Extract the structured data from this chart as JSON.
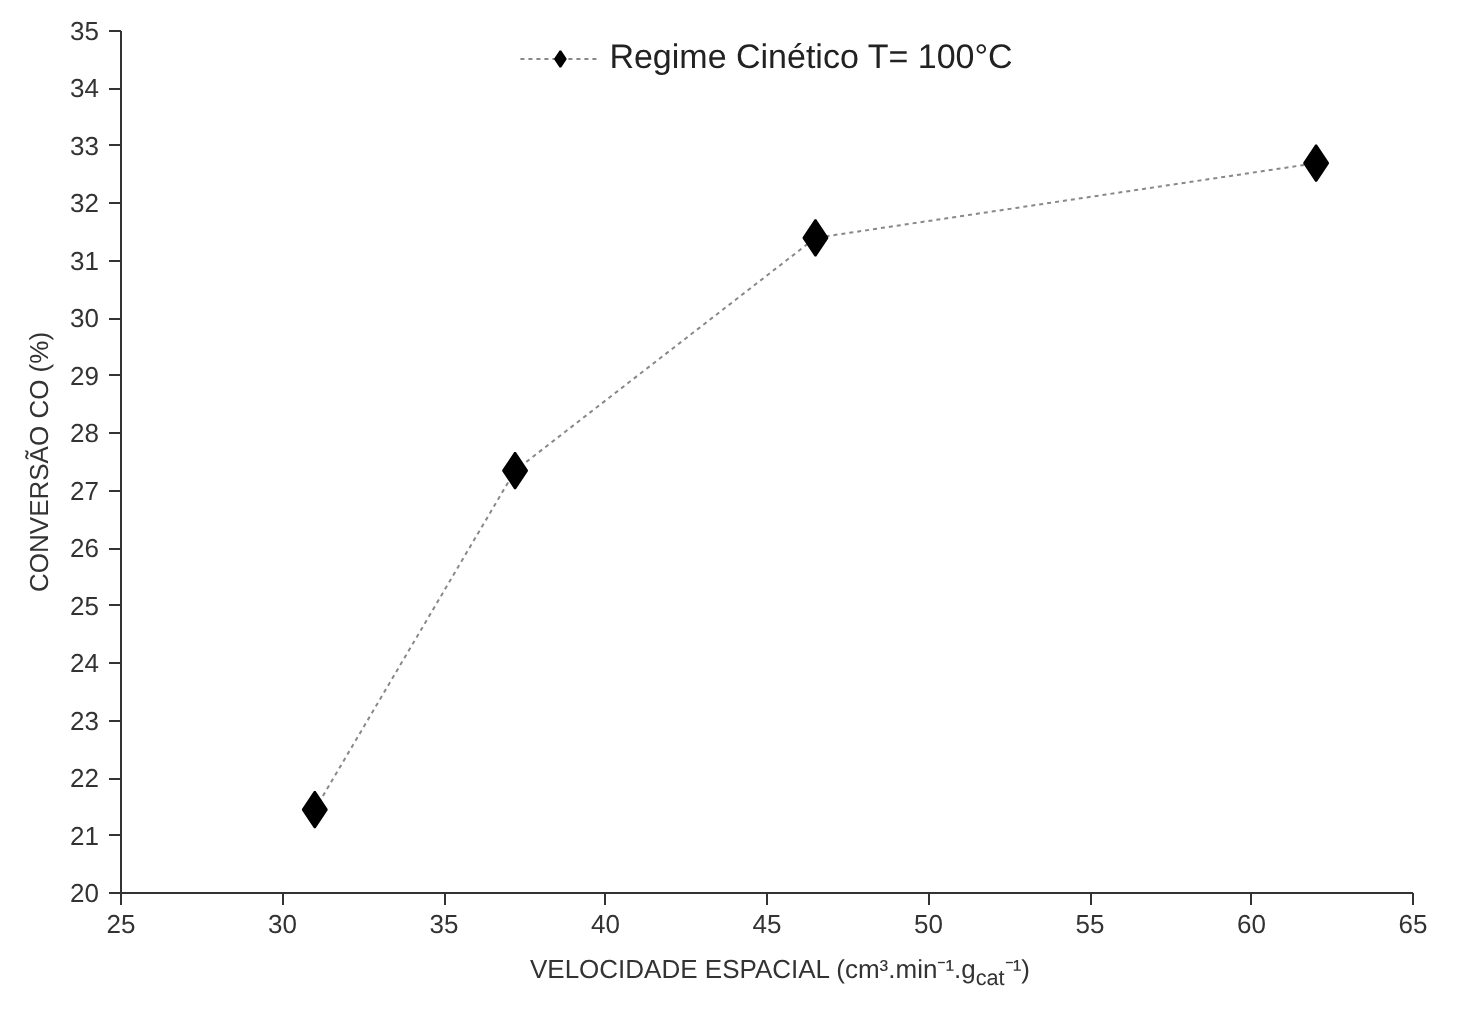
{
  "chart_data": {
    "type": "line",
    "xlabel": "VELOCIDADE ESPACIAL (cm³.min⁻¹.g$_{cat}$⁻¹)",
    "ylabel": "CONVERSÃO CO (%)",
    "x": [
      31,
      37.2,
      46.5,
      62
    ],
    "series": [
      {
        "name": "Regime Cinético T= 100°C",
        "color": "#000000",
        "values": [
          21.45,
          27.35,
          31.4,
          32.7
        ]
      }
    ],
    "xlim": [
      25,
      65
    ],
    "xticks": [
      25,
      30,
      35,
      40,
      45,
      50,
      55,
      60,
      65
    ],
    "ylim": [
      20,
      35
    ],
    "yticks": [
      20,
      21,
      22,
      23,
      24,
      25,
      26,
      27,
      28,
      29,
      30,
      31,
      32,
      33,
      34,
      35
    ],
    "marker": "diamond",
    "line_style": "dotted",
    "grid": false,
    "legend": "top"
  }
}
